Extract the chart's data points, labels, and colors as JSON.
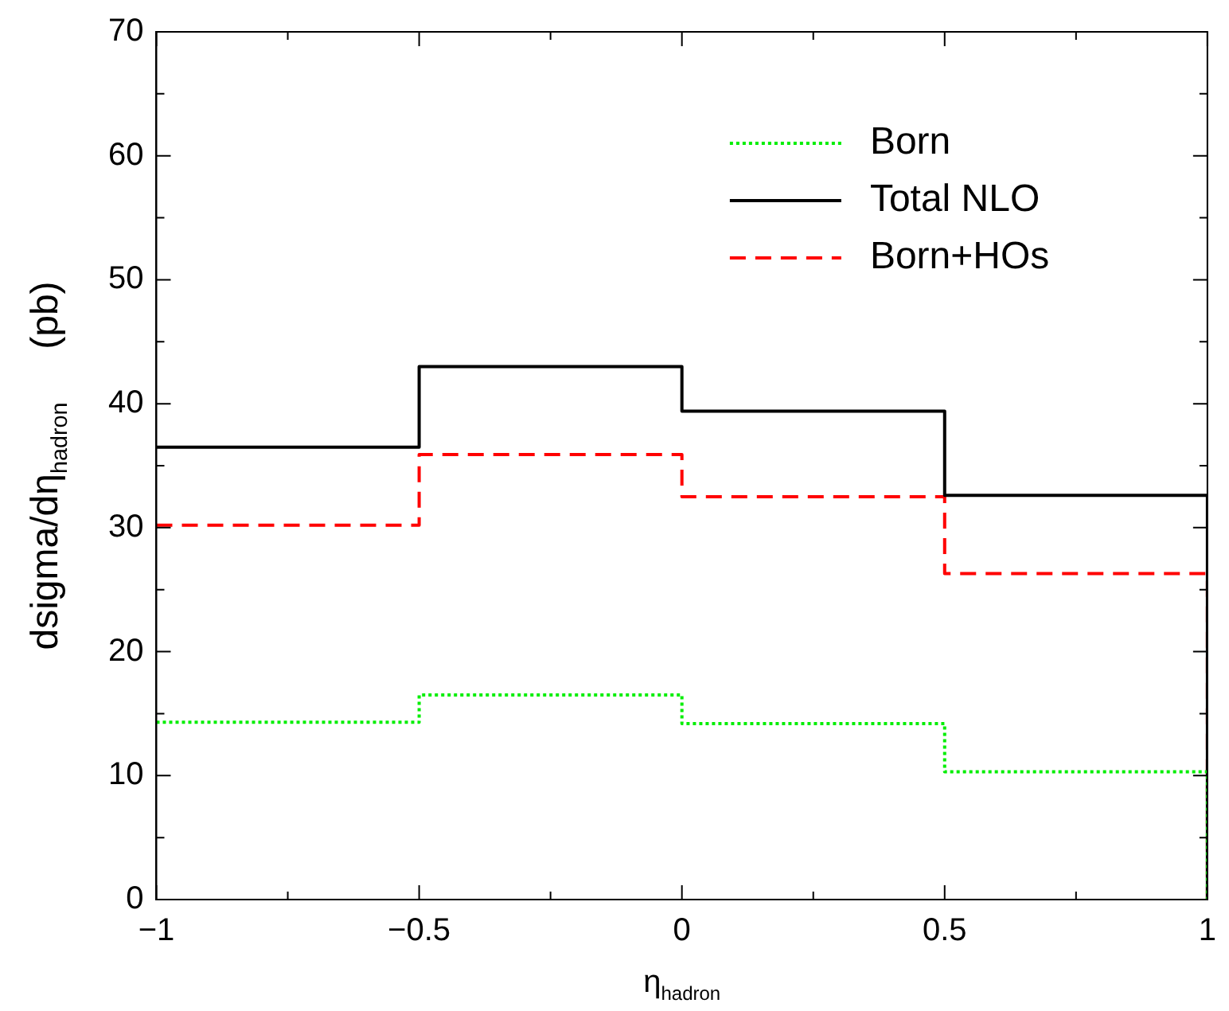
{
  "chart_data": {
    "type": "step",
    "xlabel": "η$_{hadron}$",
    "ylabel": "dsigma/dη$_{hadron}$     (pb)",
    "x": [
      -1,
      -0.5,
      0,
      0.5,
      1
    ],
    "series": [
      {
        "name": "Born",
        "color": "#00ee00",
        "line_style": "dotted",
        "values": [
          14.3,
          16.5,
          14.2,
          10.3,
          0
        ]
      },
      {
        "name": "Total NLO",
        "color": "#000000",
        "line_style": "solid",
        "values": [
          36.5,
          43,
          39.4,
          32.6,
          0
        ]
      },
      {
        "name": "Born+HOs",
        "color": "#ff0000",
        "line_style": "dashed",
        "values": [
          30.2,
          35.9,
          32.5,
          26.3,
          0
        ]
      }
    ],
    "xlim": [
      -1,
      1
    ],
    "xticks": [
      {
        "value": -1,
        "label": "−1"
      },
      {
        "value": -0.75,
        "label": null
      },
      {
        "value": -0.5,
        "label": "−0.5"
      },
      {
        "value": -0.25,
        "label": null
      },
      0,
      {
        "value": 0.25,
        "label": null
      },
      0.5,
      {
        "value": 0.75,
        "label": null
      },
      1
    ],
    "ylim": [
      0,
      70
    ],
    "yticks": [
      0,
      {
        "value": 5,
        "label": null
      },
      10,
      {
        "value": 15,
        "label": null
      },
      20,
      {
        "value": 25,
        "label": null
      },
      30,
      {
        "value": 35,
        "label": null
      },
      40,
      {
        "value": 45,
        "label": null
      },
      50,
      {
        "value": 55,
        "label": null
      },
      60,
      {
        "value": 65,
        "label": null
      },
      70
    ],
    "grid": false,
    "legend": "top right",
    "marker": "none"
  }
}
